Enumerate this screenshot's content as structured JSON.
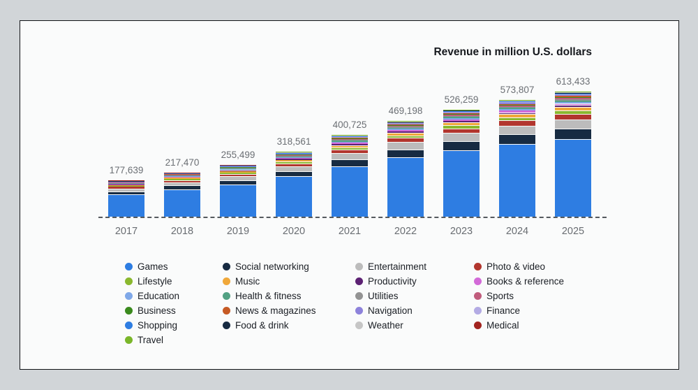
{
  "page": {
    "background": "#d1d5d8",
    "card_background": "#fafbfb",
    "card_border": "#111417",
    "axis_label_color": "#696d72",
    "value_label_color": "#6b6f74",
    "legend_text_color": "#1a1e24",
    "baseline_color": "#55595e"
  },
  "title": "Revenue in million U.S. dollars",
  "chart_data": {
    "type": "bar",
    "stacked": true,
    "stacking": "bottom-to-top in series order",
    "grid": false,
    "legend_position": "bottom",
    "baseline_style": "dashed",
    "title": "Revenue in million U.S. dollars",
    "xlabel": "",
    "ylabel": "Revenue in million U.S. dollars",
    "categories": [
      "2017",
      "2018",
      "2019",
      "2020",
      "2021",
      "2022",
      "2023",
      "2024",
      "2025"
    ],
    "totals": [
      177639,
      217470,
      255499,
      318561,
      400725,
      469198,
      526259,
      573807,
      613433
    ],
    "total_labels": [
      "177,639",
      "217,470",
      "255,499",
      "318,561",
      "400,725",
      "469,198",
      "526,259",
      "573,807",
      "613,433"
    ],
    "series": [
      {
        "name": "Games",
        "color": "#2e7de2",
        "values": [
          110137,
          134832,
          158412,
          197507,
          248448,
          290903,
          326281,
          355760,
          380330
        ]
      },
      {
        "name": "Social networking",
        "color": "#172b42",
        "values": [
          14744,
          18050,
          21206,
          26441,
          33260,
          38943,
          43679,
          47626,
          50915
        ]
      },
      {
        "name": "Entertainment",
        "color": "#bcbcbc",
        "values": [
          13678,
          16745,
          19673,
          24529,
          30856,
          36128,
          40522,
          44183,
          47234
        ]
      },
      {
        "name": "Photo & video",
        "color": "#b2362e",
        "values": [
          7638,
          9351,
          10986,
          13698,
          17231,
          20176,
          22629,
          24674,
          26378
        ]
      },
      {
        "name": "Lifestyle",
        "color": "#8ab82e",
        "values": [
          4974,
          6089,
          7154,
          8920,
          11220,
          13138,
          14735,
          16067,
          17176
        ]
      },
      {
        "name": "Music",
        "color": "#f0a83a",
        "values": [
          4619,
          5654,
          6643,
          8283,
          10419,
          12199,
          13683,
          14919,
          15949
        ]
      },
      {
        "name": "Productivity",
        "color": "#5c2173",
        "values": [
          2842,
          3480,
          4088,
          5097,
          6412,
          7507,
          8420,
          9181,
          9815
        ]
      },
      {
        "name": "Books & reference",
        "color": "#d36ad8",
        "values": [
          2487,
          3045,
          3577,
          4460,
          5610,
          6569,
          7368,
          8033,
          8588
        ]
      },
      {
        "name": "Education",
        "color": "#7fa8e8",
        "values": [
          2132,
          2610,
          3066,
          3823,
          4809,
          5630,
          6315,
          6886,
          7361
        ]
      },
      {
        "name": "Health & fitness",
        "color": "#52a183",
        "values": [
          1954,
          2392,
          2810,
          3504,
          4408,
          5161,
          5789,
          6312,
          6748
        ]
      },
      {
        "name": "Utilities",
        "color": "#939393",
        "values": [
          1776,
          2175,
          2555,
          3186,
          4007,
          4692,
          5263,
          5738,
          6134
        ]
      },
      {
        "name": "Sports",
        "color": "#c05c7c",
        "values": [
          1599,
          1957,
          2300,
          2867,
          3607,
          4223,
          4736,
          5164,
          5521
        ]
      },
      {
        "name": "Business",
        "color": "#3a8a1d",
        "values": [
          1421,
          1740,
          2044,
          2548,
          3206,
          3754,
          4210,
          4590,
          4907
        ]
      },
      {
        "name": "News & magazines",
        "color": "#c65a24",
        "values": [
          1421,
          1740,
          2044,
          2548,
          3206,
          3754,
          4210,
          4590,
          4907
        ]
      },
      {
        "name": "Navigation",
        "color": "#8d82db",
        "values": [
          1243,
          1522,
          1788,
          2230,
          2805,
          3284,
          3684,
          4017,
          4294
        ]
      },
      {
        "name": "Finance",
        "color": "#b3abe4",
        "values": [
          1243,
          1522,
          1788,
          2230,
          2805,
          3284,
          3684,
          4017,
          4294
        ]
      },
      {
        "name": "Shopping",
        "color": "#2e7de2",
        "values": [
          1066,
          1305,
          1533,
          1911,
          2404,
          2815,
          3158,
          3443,
          3681
        ]
      },
      {
        "name": "Food & drink",
        "color": "#172b42",
        "values": [
          888,
          1087,
          1277,
          1593,
          2004,
          2346,
          2631,
          2869,
          3067
        ]
      },
      {
        "name": "Weather",
        "color": "#c6c6c6",
        "values": [
          888,
          1087,
          1277,
          1593,
          2004,
          2346,
          2631,
          2869,
          3067
        ]
      },
      {
        "name": "Medical",
        "color": "#a22420",
        "values": [
          711,
          870,
          1022,
          1274,
          1603,
          1877,
          2105,
          2295,
          2454
        ]
      },
      {
        "name": "Travel",
        "color": "#7ab629",
        "values": [
          178,
          217,
          256,
          319,
          401,
          469,
          526,
          574,
          613
        ]
      }
    ]
  },
  "legend": {
    "columns": [
      [
        "Games",
        "Lifestyle",
        "Education",
        "Business",
        "Shopping",
        "Travel"
      ],
      [
        "Social networking",
        "Music",
        "Health & fitness",
        "News & magazines",
        "Food & drink"
      ],
      [
        "Entertainment",
        "Productivity",
        "Utilities",
        "Navigation",
        "Weather"
      ],
      [
        "Photo & video",
        "Books & reference",
        "Sports",
        "Finance",
        "Medical"
      ]
    ]
  }
}
